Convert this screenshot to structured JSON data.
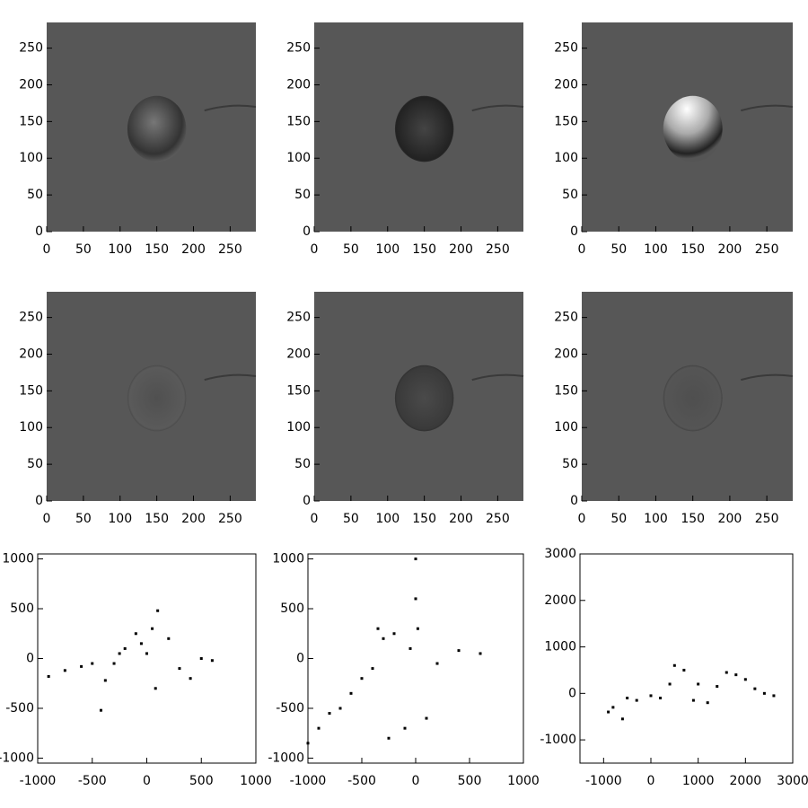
{
  "chart_data": [
    {
      "type": "image",
      "xlim": [
        0,
        285
      ],
      "ylim": [
        0,
        285
      ],
      "xticks": [
        0,
        50,
        100,
        150,
        200,
        250
      ],
      "yticks": [
        0,
        50,
        100,
        150,
        200,
        250
      ]
    },
    {
      "type": "image",
      "xlim": [
        0,
        285
      ],
      "ylim": [
        0,
        285
      ],
      "xticks": [
        0,
        50,
        100,
        150,
        200,
        250
      ],
      "yticks": [
        0,
        50,
        100,
        150,
        200,
        250
      ]
    },
    {
      "type": "image",
      "xlim": [
        0,
        285
      ],
      "ylim": [
        0,
        285
      ],
      "xticks": [
        0,
        50,
        100,
        150,
        200,
        250
      ],
      "yticks": [
        0,
        50,
        100,
        150,
        200,
        250
      ]
    },
    {
      "type": "image",
      "xlim": [
        0,
        285
      ],
      "ylim": [
        0,
        285
      ],
      "xticks": [
        0,
        50,
        100,
        150,
        200,
        250
      ],
      "yticks": [
        0,
        50,
        100,
        150,
        200,
        250
      ]
    },
    {
      "type": "image",
      "xlim": [
        0,
        285
      ],
      "ylim": [
        0,
        285
      ],
      "xticks": [
        0,
        50,
        100,
        150,
        200,
        250
      ],
      "yticks": [
        0,
        50,
        100,
        150,
        200,
        250
      ]
    },
    {
      "type": "image",
      "xlim": [
        0,
        285
      ],
      "ylim": [
        0,
        285
      ],
      "xticks": [
        0,
        50,
        100,
        150,
        200,
        250
      ],
      "yticks": [
        0,
        50,
        100,
        150,
        200,
        250
      ]
    },
    {
      "type": "scatter",
      "color": "#000000",
      "xlim": [
        -1000,
        1000
      ],
      "ylim": [
        -1050,
        1050
      ],
      "xticks": [
        -1000,
        -500,
        0,
        500,
        1000
      ],
      "yticks": [
        -1000,
        -500,
        0,
        500,
        1000
      ],
      "x": [
        -900,
        -750,
        -600,
        -500,
        -420,
        -380,
        -300,
        -250,
        -200,
        -100,
        -50,
        0,
        50,
        100,
        200,
        300,
        400,
        500,
        600,
        80
      ],
      "y": [
        -180,
        -120,
        -80,
        -50,
        -520,
        -220,
        -50,
        50,
        100,
        250,
        150,
        50,
        300,
        480,
        200,
        -100,
        -200,
        0,
        -20,
        -300
      ]
    },
    {
      "type": "scatter",
      "color": "#000000",
      "xlim": [
        -1000,
        1000
      ],
      "ylim": [
        -1050,
        1050
      ],
      "xticks": [
        -1000,
        -500,
        0,
        500,
        1000
      ],
      "yticks": [
        -1000,
        -500,
        0,
        500,
        1000
      ],
      "x": [
        -1000,
        -900,
        -800,
        -700,
        -600,
        -500,
        -400,
        -350,
        -300,
        -200,
        -100,
        -50,
        0,
        0,
        20,
        100,
        200,
        400,
        600,
        -250
      ],
      "y": [
        -850,
        -700,
        -550,
        -500,
        -350,
        -200,
        -100,
        300,
        200,
        250,
        -700,
        100,
        1000,
        600,
        300,
        -600,
        -50,
        80,
        50,
        -800
      ]
    },
    {
      "type": "scatter",
      "color": "#000000",
      "xlim": [
        -1500,
        3000
      ],
      "ylim": [
        -1500,
        3000
      ],
      "xticks": [
        -1000,
        0,
        1000,
        2000,
        3000
      ],
      "yticks": [
        -1000,
        0,
        1000,
        2000,
        3000
      ],
      "x": [
        -900,
        -800,
        -600,
        -500,
        -300,
        0,
        200,
        400,
        500,
        700,
        900,
        1000,
        1200,
        1400,
        1600,
        1800,
        2000,
        2200,
        2400,
        2600
      ],
      "y": [
        -400,
        -300,
        -550,
        -100,
        -150,
        -50,
        -100,
        200,
        600,
        500,
        -150,
        200,
        -200,
        150,
        450,
        400,
        300,
        100,
        0,
        -50
      ]
    }
  ]
}
